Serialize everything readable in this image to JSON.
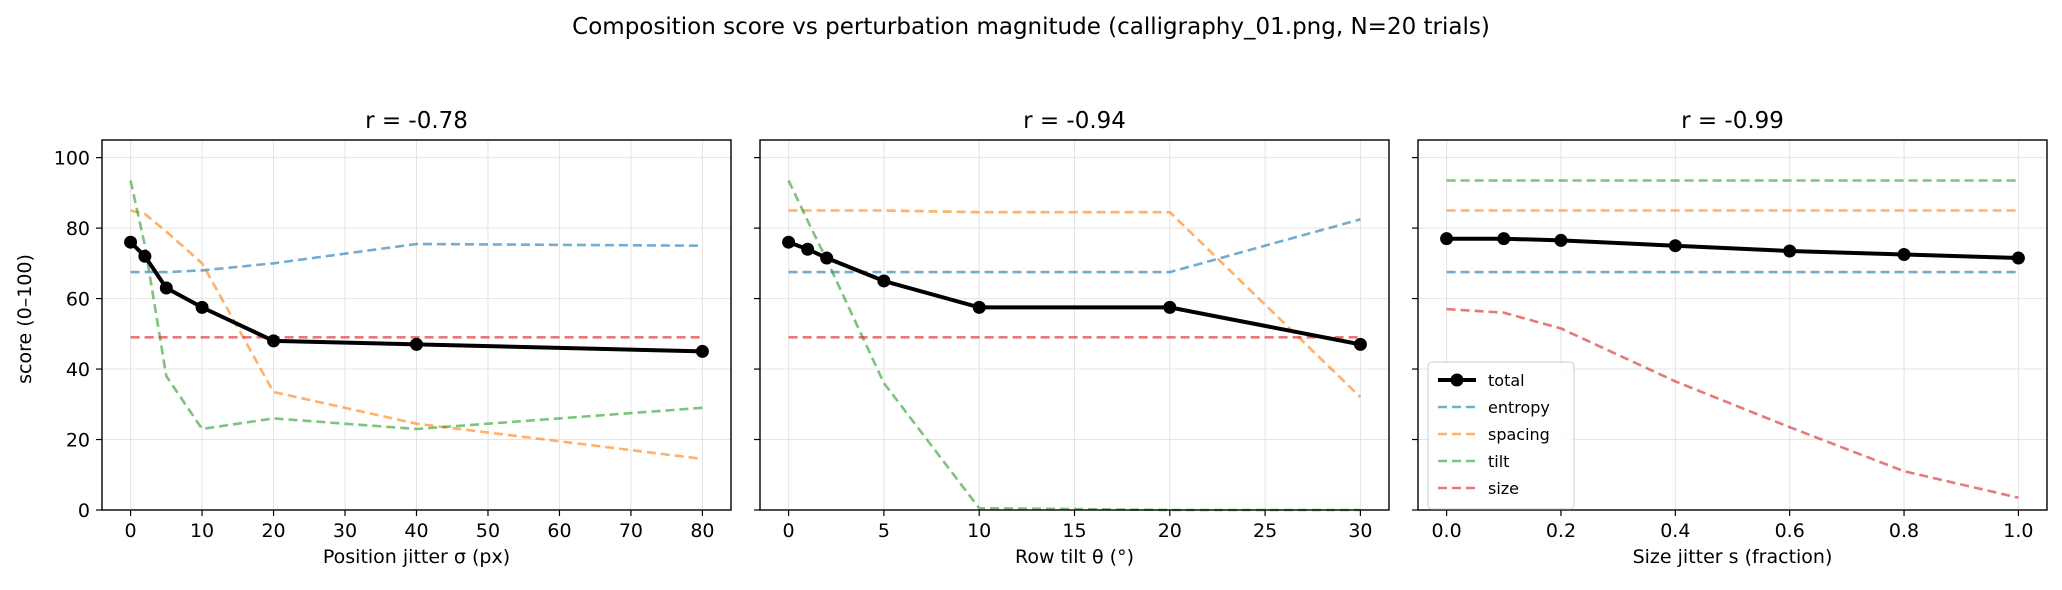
{
  "figure": {
    "suptitle": "Composition score vs perturbation magnitude  (calligraphy_01.png, N=20 trials)",
    "ylabel": "score (0–100)",
    "yticks": [
      0,
      20,
      40,
      60,
      80,
      100
    ],
    "ylim": [
      0,
      105
    ]
  },
  "series_styles": {
    "total": {
      "color": "#000000",
      "style": "solid-markers"
    },
    "entropy": {
      "color": "#1f77b4",
      "style": "dashed"
    },
    "spacing": {
      "color": "#ff7f0e",
      "style": "dashed"
    },
    "tilt": {
      "color": "#2ca02c",
      "style": "dashed"
    },
    "size": {
      "color": "#d62728",
      "style": "dashed"
    }
  },
  "chart_data": [
    {
      "type": "line",
      "title": "r = -0.78",
      "xlabel": "Position jitter  σ (px)",
      "xlim": [
        -4,
        84
      ],
      "xticks": [
        0,
        10,
        20,
        30,
        40,
        50,
        60,
        70,
        80
      ],
      "x": [
        0,
        2,
        5,
        10,
        20,
        40,
        80
      ],
      "grid": true,
      "series": [
        {
          "name": "total",
          "values": [
            76,
            72,
            63,
            57.5,
            48,
            47,
            45
          ]
        },
        {
          "name": "entropy",
          "values": [
            67.5,
            67.5,
            67.5,
            68,
            70,
            75.5,
            75
          ]
        },
        {
          "name": "spacing",
          "values": [
            85,
            84,
            79,
            70,
            33.5,
            24.5,
            14.5
          ]
        },
        {
          "name": "tilt",
          "values": [
            93.5,
            75,
            38,
            23,
            26,
            23,
            29
          ]
        },
        {
          "name": "size",
          "values": [
            49,
            49,
            49,
            49,
            49,
            49,
            49
          ]
        }
      ]
    },
    {
      "type": "line",
      "title": "r = -0.94",
      "xlabel": "Row tilt  θ (°)",
      "xlim": [
        -1.5,
        31.5
      ],
      "xticks": [
        0,
        5,
        10,
        15,
        20,
        25,
        30
      ],
      "x": [
        0,
        1,
        2,
        5,
        10,
        20,
        30
      ],
      "grid": true,
      "series": [
        {
          "name": "total",
          "values": [
            76,
            74,
            71.5,
            65,
            57.5,
            57.5,
            47
          ]
        },
        {
          "name": "entropy",
          "values": [
            67.5,
            67.5,
            67.5,
            67.5,
            67.5,
            67.5,
            82.5
          ]
        },
        {
          "name": "spacing",
          "values": [
            85,
            85,
            85,
            85,
            84.5,
            84.5,
            32
          ]
        },
        {
          "name": "tilt",
          "values": [
            93.5,
            82,
            71,
            36,
            0.5,
            0,
            0
          ]
        },
        {
          "name": "size",
          "values": [
            49,
            49,
            49,
            49,
            49,
            49,
            49
          ]
        }
      ]
    },
    {
      "type": "line",
      "title": "r = -0.99",
      "xlabel": "Size jitter  s (fraction)",
      "xlim": [
        -0.05,
        1.05
      ],
      "xticks": [
        0,
        0.2,
        0.4,
        0.6,
        0.8,
        1
      ],
      "xtick_labels": [
        "0.0",
        "0.2",
        "0.4",
        "0.6",
        "0.8",
        "1.0"
      ],
      "x": [
        0,
        0.1,
        0.2,
        0.4,
        0.6,
        0.8,
        1
      ],
      "grid": true,
      "legend": {
        "placement": "lower-left",
        "entries": [
          "total",
          "entropy",
          "spacing",
          "tilt",
          "size"
        ]
      },
      "series": [
        {
          "name": "total",
          "values": [
            77,
            77,
            76.5,
            75,
            73.5,
            72.5,
            71.5
          ]
        },
        {
          "name": "entropy",
          "values": [
            67.5,
            67.5,
            67.5,
            67.5,
            67.5,
            67.5,
            67.5
          ]
        },
        {
          "name": "spacing",
          "values": [
            85,
            85,
            85,
            85,
            85,
            85,
            85
          ]
        },
        {
          "name": "tilt",
          "values": [
            93.5,
            93.5,
            93.5,
            93.5,
            93.5,
            93.5,
            93.5
          ]
        },
        {
          "name": "size",
          "values": [
            57,
            56,
            51.5,
            36.5,
            23.5,
            11,
            3.5
          ]
        }
      ]
    }
  ]
}
